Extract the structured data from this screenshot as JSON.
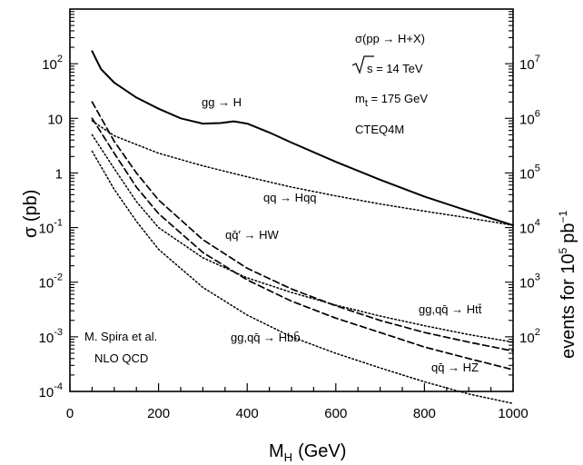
{
  "chart_data": {
    "type": "line",
    "xlabel": "M",
    "xlabel_sub": "H",
    "xlabel_unit": "(GeV)",
    "ylabel": "σ (pb)",
    "ylabel_right": "events for 10",
    "ylabel_right_sup": "5",
    "ylabel_right_unit": "pb",
    "ylabel_right_unit_sup": "−1",
    "xlim": [
      0,
      1000
    ],
    "ylim": [
      0.0001,
      1000
    ],
    "yscale": "log",
    "x_ticks": [
      0,
      200,
      400,
      600,
      800,
      1000
    ],
    "y_ticks_left": [
      {
        "base": "10",
        "exp": "-4",
        "value": 0.0001
      },
      {
        "base": "10",
        "exp": "-3",
        "value": 0.001
      },
      {
        "base": "10",
        "exp": "-2",
        "value": 0.01
      },
      {
        "base": "10",
        "exp": "-1",
        "value": 0.1
      },
      {
        "base": "1",
        "exp": "",
        "value": 1
      },
      {
        "base": "10",
        "exp": "",
        "value": 10
      },
      {
        "base": "10",
        "exp": "2",
        "value": 100
      }
    ],
    "y_ticks_right": [
      {
        "base": "10",
        "exp": "2",
        "value": 0.001
      },
      {
        "base": "10",
        "exp": "3",
        "value": 0.01
      },
      {
        "base": "10",
        "exp": "4",
        "value": 0.1
      },
      {
        "base": "10",
        "exp": "5",
        "value": 1
      },
      {
        "base": "10",
        "exp": "6",
        "value": 10
      },
      {
        "base": "10",
        "exp": "7",
        "value": 100
      }
    ],
    "series": [
      {
        "name": "gg → H",
        "style": "solid",
        "x": [
          50,
          70,
          100,
          150,
          200,
          250,
          300,
          340,
          370,
          400,
          450,
          500,
          600,
          700,
          800,
          900,
          1000
        ],
        "y": [
          170,
          80,
          45,
          24,
          15,
          10,
          8,
          8.2,
          8.8,
          8,
          5.5,
          3.6,
          1.6,
          0.75,
          0.37,
          0.2,
          0.11
        ]
      },
      {
        "name": "qq → Hqq",
        "style": "dotted",
        "x": [
          50,
          100,
          200,
          300,
          400,
          500,
          600,
          700,
          800,
          900,
          1000
        ],
        "y": [
          9,
          4.8,
          2.3,
          1.35,
          0.85,
          0.55,
          0.38,
          0.27,
          0.2,
          0.15,
          0.11
        ]
      },
      {
        "name": "qq̄′ → HW",
        "style": "dashed",
        "x": [
          50,
          100,
          150,
          200,
          300,
          400,
          500,
          600,
          700,
          800,
          900,
          1000
        ],
        "y": [
          20,
          3.8,
          1.0,
          0.32,
          0.06,
          0.018,
          0.0075,
          0.0037,
          0.002,
          0.0012,
          0.0008,
          0.00055
        ]
      },
      {
        "name": "qq̄ → HZ",
        "style": "dashed",
        "x": [
          50,
          100,
          150,
          200,
          300,
          400,
          500,
          600,
          700,
          800,
          900,
          1000
        ],
        "y": [
          10,
          2.3,
          0.55,
          0.18,
          0.035,
          0.011,
          0.0045,
          0.0022,
          0.0012,
          0.00065,
          0.0004,
          0.00025
        ]
      },
      {
        "name": "gg,qq̄ → Htt̄",
        "style": "dotted",
        "x": [
          50,
          100,
          150,
          200,
          300,
          400,
          500,
          600,
          700,
          800,
          900,
          1000
        ],
        "y": [
          5,
          1.2,
          0.3,
          0.1,
          0.028,
          0.012,
          0.0065,
          0.0038,
          0.0024,
          0.0016,
          0.0011,
          0.0008
        ]
      },
      {
        "name": "gg,qq̄ → Hbb̄",
        "style": "dotted",
        "x": [
          50,
          100,
          150,
          200,
          300,
          400,
          500,
          600,
          700,
          800,
          900,
          1000
        ],
        "y": [
          2.5,
          0.5,
          0.13,
          0.04,
          0.008,
          0.0025,
          0.001,
          0.0005,
          0.00027,
          0.00015,
          9e-05,
          6e-05
        ]
      }
    ],
    "annotations": {
      "process": "σ(pp → H+X)",
      "sqrt_s_label": "s = 14 TeV",
      "mt_label": "m",
      "mt_sub": "t",
      "mt_value": " = 175 GeV",
      "pdf": "CTEQ4M",
      "author": "M. Spira et al.",
      "method": "NLO  QCD"
    },
    "curve_labels": {
      "ggH": "gg → H",
      "hqq": "qq → Hqq",
      "hw": "qq̄′ → HW",
      "htt": "gg,qq̄ → Htt̄",
      "hbb": "gg,qq̄ → Hbb̄",
      "hz": "qq̄ → HZ"
    },
    "grid": false,
    "legend": "none"
  }
}
